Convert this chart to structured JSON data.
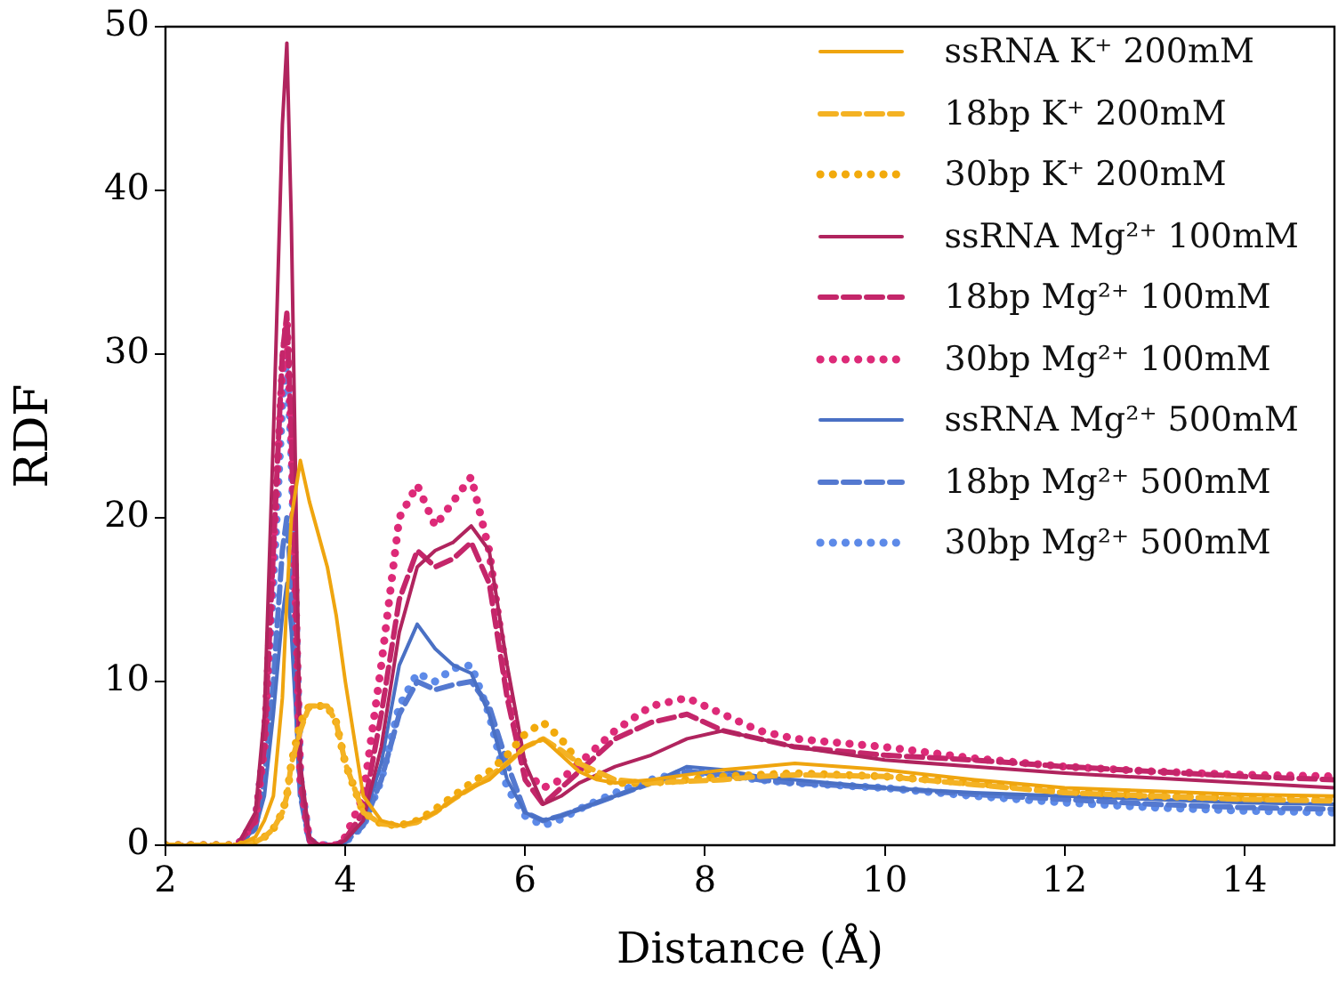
{
  "chart_data": {
    "type": "line",
    "xlabel": "Distance (Å)",
    "ylabel": "RDF",
    "xlim": [
      2,
      15
    ],
    "xticks": [
      2,
      4,
      6,
      8,
      10,
      12,
      14
    ],
    "ylim": [
      0,
      50
    ],
    "yticks": [
      0,
      10,
      20,
      30,
      40,
      50
    ],
    "grid": false,
    "legend": "top right",
    "marker": "none",
    "x": [
      2,
      2.8,
      3.0,
      3.1,
      3.2,
      3.3,
      3.35,
      3.4,
      3.5,
      3.6,
      3.7,
      3.8,
      3.9,
      4.0,
      4.2,
      4.4,
      4.6,
      4.8,
      5.0,
      5.2,
      5.4,
      5.6,
      5.8,
      6.0,
      6.2,
      6.4,
      6.6,
      6.8,
      7.0,
      7.4,
      7.8,
      8.2,
      8.6,
      9.0,
      10,
      11,
      12,
      13,
      14,
      15
    ],
    "series": [
      {
        "name": "ssRNA K⁺ 200mM",
        "color": "#efa50f",
        "line_style": "solid",
        "values": [
          0,
          0,
          0.5,
          1.5,
          3,
          9,
          15,
          20,
          23.5,
          21,
          19,
          17,
          14,
          10,
          3,
          1.5,
          1.2,
          1.5,
          2,
          2.8,
          3.5,
          4,
          5,
          6,
          6.5,
          5.5,
          4.5,
          4,
          3.8,
          4,
          4.3,
          4.6,
          4.8,
          5,
          4.6,
          4,
          3.5,
          3.3,
          3.1,
          3
        ]
      },
      {
        "name": "18bp K⁺ 200mM",
        "color": "#f4b223",
        "line_style": "dashed",
        "values": [
          0,
          0,
          0.2,
          0.5,
          1,
          2,
          3,
          5,
          7,
          8.5,
          8.5,
          8.5,
          7.5,
          5,
          2,
          1.3,
          1.2,
          1.4,
          2,
          2.8,
          3.5,
          4.2,
          5,
          6,
          6.5,
          5.8,
          5,
          4.5,
          4,
          3.8,
          3.9,
          4,
          4.2,
          4.3,
          4.2,
          3.7,
          3.2,
          3,
          2.8,
          2.7
        ]
      },
      {
        "name": "30bp K⁺ 200mM",
        "color": "#f2aa0c",
        "line_style": "dotted",
        "values": [
          0,
          0,
          0.2,
          0.5,
          1,
          2,
          3,
          5,
          7.5,
          8.5,
          8.5,
          8.5,
          7.5,
          5,
          2,
          1.3,
          1.2,
          1.5,
          2.2,
          3,
          3.8,
          4.5,
          5.5,
          6.8,
          7.5,
          6.5,
          5,
          4.2,
          3.8,
          3.8,
          4,
          4.2,
          4.3,
          4.4,
          4.2,
          3.8,
          3.3,
          3,
          2.9,
          2.8
        ]
      },
      {
        "name": "ssRNA Mg²⁺ 100mM",
        "color": "#b0245e",
        "line_style": "solid",
        "values": [
          0,
          0,
          2,
          8,
          25,
          44,
          49,
          38,
          5,
          0.5,
          0,
          0,
          0,
          0.3,
          1.5,
          6,
          13,
          17,
          18,
          18.5,
          19.5,
          18,
          11,
          5,
          2.5,
          3,
          3.8,
          4.3,
          4.8,
          5.5,
          6.5,
          7,
          6.5,
          6,
          5.2,
          4.8,
          4.4,
          4.1,
          3.8,
          3.5
        ]
      },
      {
        "name": "18bp Mg²⁺ 100mM",
        "color": "#c4266a",
        "line_style": "dashed",
        "values": [
          0,
          0,
          1.5,
          6,
          18,
          30,
          32.5,
          25,
          4,
          0.3,
          0,
          0,
          0,
          0.4,
          2,
          8,
          15,
          18,
          17,
          17.5,
          18.5,
          16,
          9,
          4,
          2.5,
          3.5,
          4.5,
          5.5,
          6.5,
          7.5,
          8,
          7,
          6.5,
          6,
          5.5,
          5.2,
          4.8,
          4.5,
          4.2,
          4
        ]
      },
      {
        "name": "30bp Mg²⁺ 100mM",
        "color": "#dd2a78",
        "line_style": "dotted",
        "values": [
          0,
          0,
          1.5,
          6,
          18,
          29,
          32,
          25,
          4,
          0.3,
          0,
          0,
          0,
          0.5,
          3,
          11,
          20,
          22,
          19.5,
          21,
          22.5,
          18,
          10,
          4.5,
          3.5,
          4,
          5,
          6,
          7,
          8.5,
          9,
          8,
          7,
          6.5,
          6,
          5.3,
          4.8,
          4.5,
          4.3,
          4.2
        ]
      },
      {
        "name": "ssRNA Mg²⁺ 500mM",
        "color": "#4a70c4",
        "line_style": "solid",
        "values": [
          0,
          0,
          1,
          3,
          8,
          14,
          16,
          13,
          3,
          0.2,
          0,
          0,
          0,
          0.2,
          1.5,
          5,
          11,
          13.5,
          12,
          11,
          10.5,
          8,
          4,
          2,
          1.5,
          1.8,
          2.2,
          2.6,
          3,
          3.8,
          4.8,
          4.6,
          4.2,
          4,
          3.5,
          3.2,
          3,
          2.8,
          2.6,
          2.5
        ]
      },
      {
        "name": "18bp Mg²⁺ 500mM",
        "color": "#5479d0",
        "line_style": "dashed",
        "values": [
          0,
          0,
          1,
          4,
          10,
          18,
          20,
          16,
          3,
          0.2,
          0,
          0,
          0,
          0.2,
          1.2,
          4,
          8,
          10,
          9.5,
          9.8,
          10,
          8.5,
          5,
          2,
          1.5,
          1.8,
          2.2,
          2.6,
          3,
          3.8,
          4.5,
          4.3,
          4,
          3.8,
          3.5,
          3.1,
          2.8,
          2.5,
          2.3,
          2.2
        ]
      },
      {
        "name": "30bp Mg²⁺ 500mM",
        "color": "#5d8ae8",
        "line_style": "dotted",
        "values": [
          0,
          0,
          1.5,
          6,
          16,
          27,
          30,
          24,
          4,
          0.3,
          0,
          0,
          0,
          0.2,
          1.2,
          4,
          8.5,
          10.5,
          10,
          10.8,
          11,
          8,
          3.5,
          1.8,
          1.2,
          1.6,
          2.2,
          2.7,
          3.2,
          4,
          4.5,
          4.3,
          4,
          3.8,
          3.5,
          3,
          2.6,
          2.3,
          2.1,
          2
        ]
      }
    ]
  }
}
